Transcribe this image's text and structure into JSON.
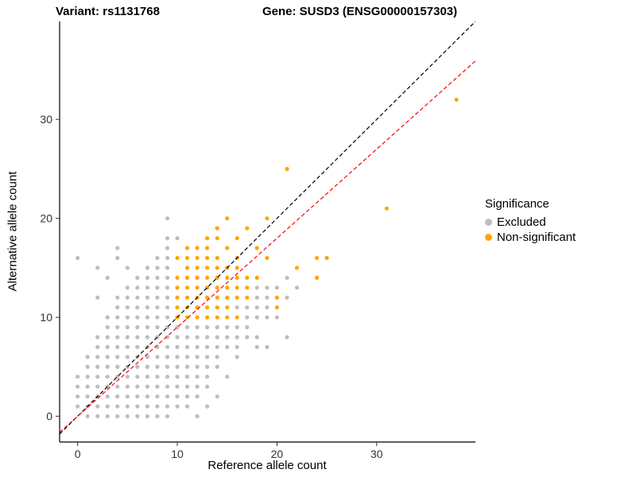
{
  "titles": {
    "left": "Variant: rs1131768",
    "right": "Gene: SUSD3 (ENSG00000157303)"
  },
  "axes": {
    "x_label": "Reference allele count",
    "y_label": "Alternative allele count",
    "x_ticks": [
      0,
      10,
      20,
      30
    ],
    "y_ticks": [
      0,
      10,
      20,
      30
    ]
  },
  "legend": {
    "title": "Significance",
    "items": [
      {
        "label": "Excluded",
        "color": "#BEBEBE"
      },
      {
        "label": "Non-significant",
        "color": "#FFA500"
      }
    ]
  },
  "chart_data": {
    "type": "scatter",
    "title": "Variant: rs1131768 — Gene: SUSD3 (ENSG00000157303)",
    "xlabel": "Reference allele count",
    "ylabel": "Alternative allele count",
    "xlim": [
      -1.8,
      39.9
    ],
    "ylim": [
      -2.6,
      39.9
    ],
    "grid": false,
    "legend_position": "right",
    "point_radius": 2.6,
    "lines": [
      {
        "name": "identity",
        "slope": 1.0,
        "intercept": 0,
        "color": "#000000",
        "dash": "5,3"
      },
      {
        "name": "fit",
        "slope": 0.9,
        "intercept": 0,
        "color": "#FF0000",
        "dash": "5,3"
      }
    ],
    "series": [
      {
        "name": "Excluded",
        "color": "#BEBEBE",
        "points": [
          [
            1,
            0
          ],
          [
            2,
            0
          ],
          [
            3,
            0
          ],
          [
            4,
            0
          ],
          [
            5,
            0
          ],
          [
            6,
            0
          ],
          [
            7,
            0
          ],
          [
            8,
            0
          ],
          [
            9,
            0
          ],
          [
            12,
            0
          ],
          [
            0,
            1
          ],
          [
            1,
            1
          ],
          [
            2,
            1
          ],
          [
            3,
            1
          ],
          [
            4,
            1
          ],
          [
            5,
            1
          ],
          [
            6,
            1
          ],
          [
            7,
            1
          ],
          [
            8,
            1
          ],
          [
            9,
            1
          ],
          [
            10,
            1
          ],
          [
            11,
            1
          ],
          [
            13,
            1
          ],
          [
            0,
            2
          ],
          [
            1,
            2
          ],
          [
            2,
            2
          ],
          [
            3,
            2
          ],
          [
            4,
            2
          ],
          [
            5,
            2
          ],
          [
            6,
            2
          ],
          [
            7,
            2
          ],
          [
            8,
            2
          ],
          [
            9,
            2
          ],
          [
            10,
            2
          ],
          [
            11,
            2
          ],
          [
            12,
            2
          ],
          [
            14,
            2
          ],
          [
            0,
            3
          ],
          [
            1,
            3
          ],
          [
            2,
            3
          ],
          [
            3,
            3
          ],
          [
            4,
            3
          ],
          [
            5,
            3
          ],
          [
            6,
            3
          ],
          [
            7,
            3
          ],
          [
            8,
            3
          ],
          [
            9,
            3
          ],
          [
            10,
            3
          ],
          [
            11,
            3
          ],
          [
            12,
            3
          ],
          [
            13,
            3
          ],
          [
            0,
            4
          ],
          [
            1,
            4
          ],
          [
            2,
            4
          ],
          [
            3,
            4
          ],
          [
            4,
            4
          ],
          [
            5,
            4
          ],
          [
            6,
            4
          ],
          [
            7,
            4
          ],
          [
            8,
            4
          ],
          [
            9,
            4
          ],
          [
            10,
            4
          ],
          [
            11,
            4
          ],
          [
            12,
            4
          ],
          [
            13,
            4
          ],
          [
            15,
            4
          ],
          [
            1,
            5
          ],
          [
            2,
            5
          ],
          [
            3,
            5
          ],
          [
            4,
            5
          ],
          [
            5,
            5
          ],
          [
            6,
            5
          ],
          [
            7,
            5
          ],
          [
            8,
            5
          ],
          [
            9,
            5
          ],
          [
            10,
            5
          ],
          [
            11,
            5
          ],
          [
            12,
            5
          ],
          [
            13,
            5
          ],
          [
            14,
            5
          ],
          [
            1,
            6
          ],
          [
            2,
            6
          ],
          [
            3,
            6
          ],
          [
            4,
            6
          ],
          [
            5,
            6
          ],
          [
            6,
            6
          ],
          [
            7,
            6
          ],
          [
            8,
            6
          ],
          [
            9,
            6
          ],
          [
            10,
            6
          ],
          [
            11,
            6
          ],
          [
            12,
            6
          ],
          [
            13,
            6
          ],
          [
            14,
            6
          ],
          [
            16,
            6
          ],
          [
            2,
            7
          ],
          [
            3,
            7
          ],
          [
            4,
            7
          ],
          [
            5,
            7
          ],
          [
            6,
            7
          ],
          [
            7,
            7
          ],
          [
            8,
            7
          ],
          [
            9,
            7
          ],
          [
            10,
            7
          ],
          [
            11,
            7
          ],
          [
            12,
            7
          ],
          [
            13,
            7
          ],
          [
            14,
            7
          ],
          [
            15,
            7
          ],
          [
            16,
            7
          ],
          [
            18,
            7
          ],
          [
            19,
            7
          ],
          [
            2,
            8
          ],
          [
            3,
            8
          ],
          [
            4,
            8
          ],
          [
            5,
            8
          ],
          [
            6,
            8
          ],
          [
            7,
            8
          ],
          [
            8,
            8
          ],
          [
            9,
            8
          ],
          [
            10,
            8
          ],
          [
            11,
            8
          ],
          [
            12,
            8
          ],
          [
            13,
            8
          ],
          [
            14,
            8
          ],
          [
            15,
            8
          ],
          [
            16,
            8
          ],
          [
            17,
            8
          ],
          [
            18,
            8
          ],
          [
            21,
            8
          ],
          [
            3,
            9
          ],
          [
            4,
            9
          ],
          [
            5,
            9
          ],
          [
            6,
            9
          ],
          [
            7,
            9
          ],
          [
            8,
            9
          ],
          [
            9,
            9
          ],
          [
            10,
            9
          ],
          [
            11,
            9
          ],
          [
            12,
            9
          ],
          [
            13,
            9
          ],
          [
            14,
            9
          ],
          [
            15,
            9
          ],
          [
            16,
            9
          ],
          [
            17,
            9
          ],
          [
            3,
            10
          ],
          [
            4,
            10
          ],
          [
            5,
            10
          ],
          [
            6,
            10
          ],
          [
            7,
            10
          ],
          [
            8,
            10
          ],
          [
            9,
            10
          ],
          [
            17,
            10
          ],
          [
            18,
            10
          ],
          [
            19,
            10
          ],
          [
            20,
            10
          ],
          [
            4,
            11
          ],
          [
            5,
            11
          ],
          [
            6,
            11
          ],
          [
            7,
            11
          ],
          [
            8,
            11
          ],
          [
            9,
            11
          ],
          [
            16,
            11
          ],
          [
            17,
            11
          ],
          [
            18,
            11
          ],
          [
            19,
            11
          ],
          [
            2,
            12
          ],
          [
            4,
            12
          ],
          [
            5,
            12
          ],
          [
            6,
            12
          ],
          [
            7,
            12
          ],
          [
            8,
            12
          ],
          [
            9,
            12
          ],
          [
            18,
            12
          ],
          [
            19,
            12
          ],
          [
            21,
            12
          ],
          [
            5,
            13
          ],
          [
            6,
            13
          ],
          [
            7,
            13
          ],
          [
            8,
            13
          ],
          [
            9,
            13
          ],
          [
            18,
            13
          ],
          [
            19,
            13
          ],
          [
            20,
            13
          ],
          [
            22,
            13
          ],
          [
            3,
            14
          ],
          [
            6,
            14
          ],
          [
            7,
            14
          ],
          [
            8,
            14
          ],
          [
            9,
            14
          ],
          [
            21,
            14
          ],
          [
            2,
            15
          ],
          [
            5,
            15
          ],
          [
            7,
            15
          ],
          [
            8,
            15
          ],
          [
            9,
            15
          ],
          [
            0,
            16
          ],
          [
            4,
            16
          ],
          [
            8,
            16
          ],
          [
            9,
            16
          ],
          [
            4,
            17
          ],
          [
            9,
            17
          ],
          [
            9,
            18
          ],
          [
            10,
            18
          ],
          [
            9,
            20
          ]
        ]
      },
      {
        "name": "Non-significant",
        "color": "#FFA500",
        "points": [
          [
            10,
            10
          ],
          [
            11,
            10
          ],
          [
            12,
            10
          ],
          [
            13,
            10
          ],
          [
            14,
            10
          ],
          [
            15,
            10
          ],
          [
            16,
            10
          ],
          [
            10,
            11
          ],
          [
            11,
            11
          ],
          [
            12,
            11
          ],
          [
            13,
            11
          ],
          [
            14,
            11
          ],
          [
            15,
            11
          ],
          [
            20,
            11
          ],
          [
            10,
            12
          ],
          [
            11,
            12
          ],
          [
            12,
            12
          ],
          [
            13,
            12
          ],
          [
            14,
            12
          ],
          [
            15,
            12
          ],
          [
            16,
            12
          ],
          [
            17,
            12
          ],
          [
            20,
            12
          ],
          [
            10,
            13
          ],
          [
            11,
            13
          ],
          [
            12,
            13
          ],
          [
            13,
            13
          ],
          [
            14,
            13
          ],
          [
            15,
            13
          ],
          [
            16,
            13
          ],
          [
            17,
            13
          ],
          [
            10,
            14
          ],
          [
            11,
            14
          ],
          [
            12,
            14
          ],
          [
            13,
            14
          ],
          [
            14,
            14
          ],
          [
            15,
            14
          ],
          [
            16,
            14
          ],
          [
            17,
            14
          ],
          [
            18,
            14
          ],
          [
            24,
            14
          ],
          [
            11,
            15
          ],
          [
            12,
            15
          ],
          [
            13,
            15
          ],
          [
            14,
            15
          ],
          [
            15,
            15
          ],
          [
            16,
            15
          ],
          [
            22,
            15
          ],
          [
            10,
            16
          ],
          [
            11,
            16
          ],
          [
            12,
            16
          ],
          [
            13,
            16
          ],
          [
            14,
            16
          ],
          [
            16,
            16
          ],
          [
            19,
            16
          ],
          [
            24,
            16
          ],
          [
            25,
            16
          ],
          [
            11,
            17
          ],
          [
            12,
            17
          ],
          [
            13,
            17
          ],
          [
            15,
            17
          ],
          [
            18,
            17
          ],
          [
            13,
            18
          ],
          [
            14,
            18
          ],
          [
            16,
            18
          ],
          [
            14,
            19
          ],
          [
            17,
            19
          ],
          [
            15,
            20
          ],
          [
            19,
            20
          ],
          [
            21,
            25
          ],
          [
            31,
            21
          ],
          [
            38,
            32
          ]
        ]
      }
    ]
  }
}
